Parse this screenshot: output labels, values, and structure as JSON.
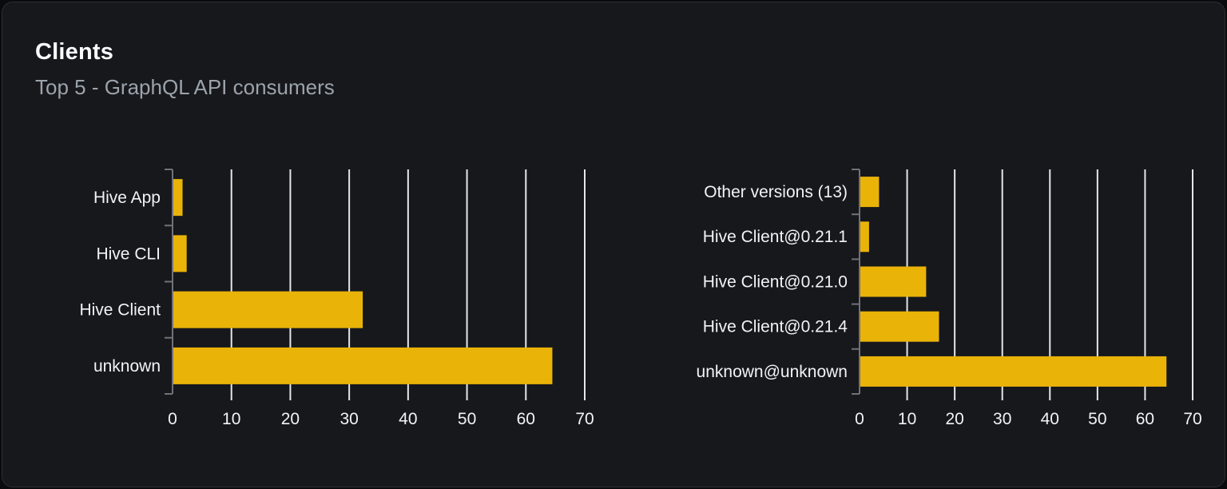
{
  "card": {
    "title": "Clients",
    "subtitle": "Top 5 - GraphQL API consumers"
  },
  "colors": {
    "page_bg": "#0a0b0d",
    "card_bg": "#16181c",
    "card_border": "#2b2e34",
    "title_text": "#fbfbfc",
    "subtitle_text": "#9ca3ab",
    "bar": "#eab308",
    "gridline": "#e4e6ea",
    "axis": "#71717a",
    "axis_label_text": "#f2f3f4"
  },
  "chart_data": [
    {
      "type": "bar",
      "orientation": "horizontal",
      "name": "clients-by-name",
      "categories": [
        "Hive App",
        "Hive CLI",
        "Hive Client",
        "unknown"
      ],
      "values": [
        1.7,
        2.4,
        32.3,
        64.5
      ],
      "xlim": [
        0,
        70
      ],
      "xticks": [
        0,
        10,
        20,
        30,
        40,
        50,
        60,
        70
      ],
      "grid": true,
      "legend": "none",
      "title": "",
      "xlabel": "",
      "ylabel": ""
    },
    {
      "type": "bar",
      "orientation": "horizontal",
      "name": "clients-by-version",
      "categories": [
        "Other versions (13)",
        "Hive Client@0.21.1",
        "Hive Client@0.21.0",
        "Hive Client@0.21.4",
        "unknown@unknown"
      ],
      "values": [
        4.1,
        2.0,
        14.0,
        16.7,
        64.5
      ],
      "xlim": [
        0,
        70
      ],
      "xticks": [
        0,
        10,
        20,
        30,
        40,
        50,
        60,
        70
      ],
      "grid": true,
      "legend": "none",
      "title": "",
      "xlabel": "",
      "ylabel": ""
    }
  ]
}
